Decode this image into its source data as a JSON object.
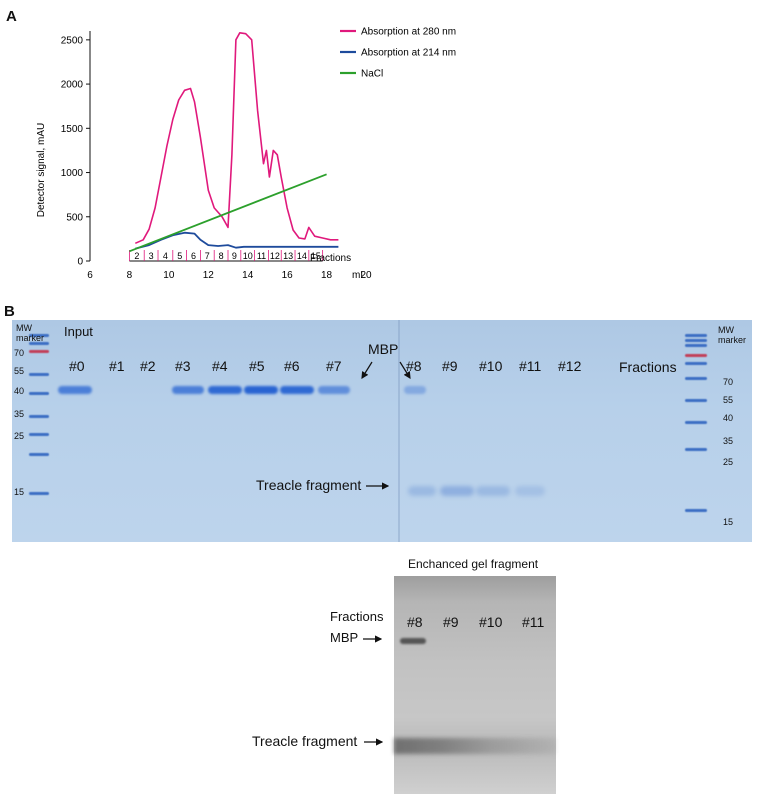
{
  "panel_a": {
    "letter": "A",
    "chart_data": {
      "type": "line",
      "xlabel": "mL",
      "ylabel": "Detector signal, mAU",
      "xlim": [
        6,
        20
      ],
      "ylim": [
        0,
        2600
      ],
      "x_ticks": [
        6,
        8,
        10,
        12,
        14,
        16,
        18,
        20
      ],
      "y_ticks": [
        0,
        500,
        1000,
        1500,
        2000,
        2500
      ],
      "fractions_label": "Fractions",
      "fractions": [
        "2",
        "3",
        "4",
        "5",
        "6",
        "7",
        "8",
        "9",
        "10",
        "11",
        "12",
        "13",
        "14",
        "15"
      ],
      "fraction_boundaries_mL": [
        8.0,
        8.75,
        9.45,
        10.2,
        10.9,
        11.6,
        12.3,
        13.0,
        13.65,
        14.35,
        15.05,
        15.7,
        16.4,
        17.1,
        17.8
      ],
      "series": [
        {
          "name": "Absorption at 280 nm",
          "color": "#e0197c",
          "x": [
            8.3,
            8.7,
            9.0,
            9.3,
            9.6,
            9.9,
            10.2,
            10.5,
            10.8,
            11.1,
            11.3,
            11.6,
            12.0,
            12.3,
            12.7,
            13.0,
            13.2,
            13.4,
            13.6,
            13.9,
            14.2,
            14.5,
            14.8,
            14.95,
            15.1,
            15.3,
            15.5,
            15.7,
            16.0,
            16.3,
            16.6,
            16.9,
            17.1,
            17.4,
            17.8,
            18.2,
            18.6
          ],
          "y": [
            200,
            240,
            360,
            600,
            950,
            1300,
            1600,
            1820,
            1930,
            1950,
            1800,
            1400,
            800,
            600,
            500,
            380,
            1200,
            2500,
            2580,
            2570,
            2500,
            1700,
            1100,
            1250,
            950,
            1250,
            1200,
            950,
            600,
            350,
            260,
            250,
            380,
            280,
            260,
            240,
            240
          ]
        },
        {
          "name": "Absorption at 214 nm",
          "color": "#1e4b9c",
          "x": [
            8.3,
            9.0,
            9.6,
            10.2,
            10.8,
            11.3,
            11.6,
            12.0,
            12.5,
            13.0,
            13.4,
            13.8,
            14.5,
            15.5,
            16.5,
            17.5,
            18.6
          ],
          "y": [
            140,
            180,
            240,
            290,
            320,
            310,
            240,
            180,
            170,
            180,
            150,
            160,
            160,
            160,
            160,
            160,
            160
          ]
        },
        {
          "name": "NaCl",
          "color": "#2ca02c",
          "x": [
            8.0,
            18.0
          ],
          "y": [
            110,
            980
          ]
        }
      ]
    }
  },
  "panel_b": {
    "letter": "B",
    "mw_marker_left": "MW\nmarker",
    "mw_marker_right": "MW\nmarker",
    "input_label": "Input",
    "mw_left": [
      "70",
      "55",
      "40",
      "35",
      "25",
      "15"
    ],
    "mw_right": [
      "70",
      "55",
      "40",
      "35",
      "25",
      "15"
    ],
    "lanes": [
      "#0",
      "#1",
      "#2",
      "#3",
      "#4",
      "#5",
      "#6",
      "#7",
      "#8",
      "#9",
      "#10",
      "#11",
      "#12"
    ],
    "fractions_label": "Fractions",
    "mbp_label": "MBP",
    "treacle_label": "Treacle fragment"
  },
  "enhanced": {
    "title": "Enchanced gel fragment",
    "fractions_label": "Fractions",
    "lanes": [
      "#8",
      "#9",
      "#10",
      "#11"
    ],
    "mbp_label": "MBP",
    "treacle_label": "Treacle fragment"
  }
}
